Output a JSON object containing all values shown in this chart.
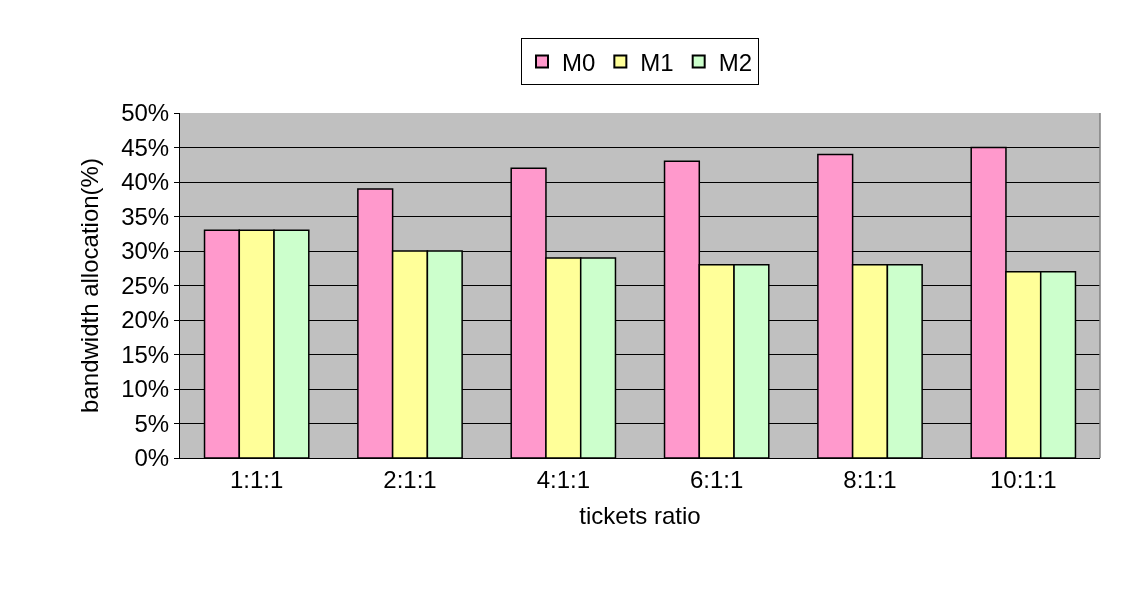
{
  "chart_data": {
    "type": "bar",
    "xlabel": "tickets ratio",
    "ylabel": "bandwidth allocation(%)",
    "categories": [
      "1:1:1",
      "2:1:1",
      "4:1:1",
      "6:1:1",
      "8:1:1",
      "10:1:1"
    ],
    "series": [
      {
        "name": "M0",
        "color": "#ff99cc",
        "values": [
          33,
          39,
          42,
          43,
          44,
          45
        ]
      },
      {
        "name": "M1",
        "color": "#ffff99",
        "values": [
          33,
          30,
          29,
          28,
          28,
          27
        ]
      },
      {
        "name": "M2",
        "color": "#ccffcc",
        "values": [
          33,
          30,
          29,
          28,
          28,
          27
        ]
      }
    ],
    "ylim": [
      0,
      50
    ],
    "yticks": [
      {
        "value": 0,
        "label": "0%"
      },
      {
        "value": 5,
        "label": "5%"
      },
      {
        "value": 10,
        "label": "10%"
      },
      {
        "value": 15,
        "label": "15%"
      },
      {
        "value": 20,
        "label": "20%"
      },
      {
        "value": 25,
        "label": "25%"
      },
      {
        "value": 30,
        "label": "30%"
      },
      {
        "value": 35,
        "label": "35%"
      },
      {
        "value": 40,
        "label": "40%"
      },
      {
        "value": 45,
        "label": "45%"
      },
      {
        "value": 50,
        "label": "50%"
      }
    ],
    "grid": "y",
    "legend": "top"
  }
}
